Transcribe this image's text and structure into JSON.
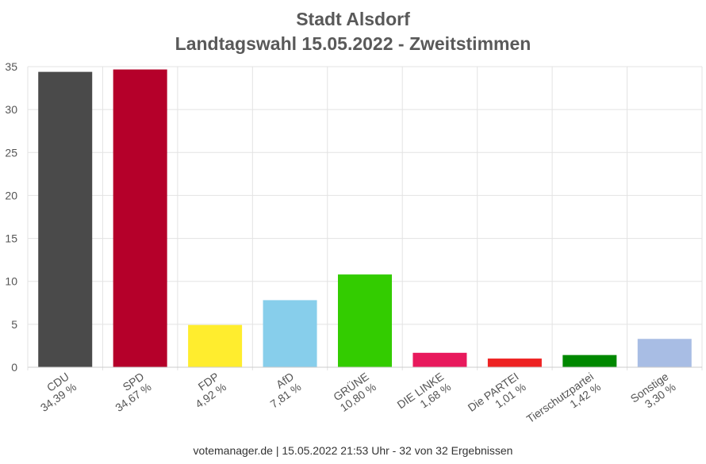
{
  "chart_data": {
    "type": "bar",
    "title": "Stadt Alsdorf",
    "subtitle": "Landtagswahl 15.05.2022  - Zweitstimmen",
    "categories": [
      "CDU",
      "SPD",
      "FDP",
      "AfD",
      "GRÜNE",
      "DIE LINKE",
      "Die PARTEI",
      "Tierschutzpartei",
      "Sonstige"
    ],
    "value_labels": [
      "34,39 %",
      "34,67 %",
      "4,92 %",
      "7,81 %",
      "10,80 %",
      "1,68 %",
      "1,01 %",
      "1,42 %",
      "3,30 %"
    ],
    "values": [
      34.39,
      34.67,
      4.92,
      7.81,
      10.8,
      1.68,
      1.01,
      1.42,
      3.3
    ],
    "colors": [
      "#4a4a4a",
      "#b5002a",
      "#ffed2e",
      "#87ceeb",
      "#33cc00",
      "#e8195c",
      "#ee2222",
      "#008800",
      "#a8bde4"
    ],
    "ylim": [
      0,
      35
    ],
    "yticks": [
      "0",
      "5",
      "10",
      "15",
      "20",
      "25",
      "30",
      "35"
    ],
    "grid": true,
    "legend": "none"
  },
  "footer": "votemanager.de | 15.05.2022 21:53 Uhr - 32 von 32 Ergebnissen"
}
